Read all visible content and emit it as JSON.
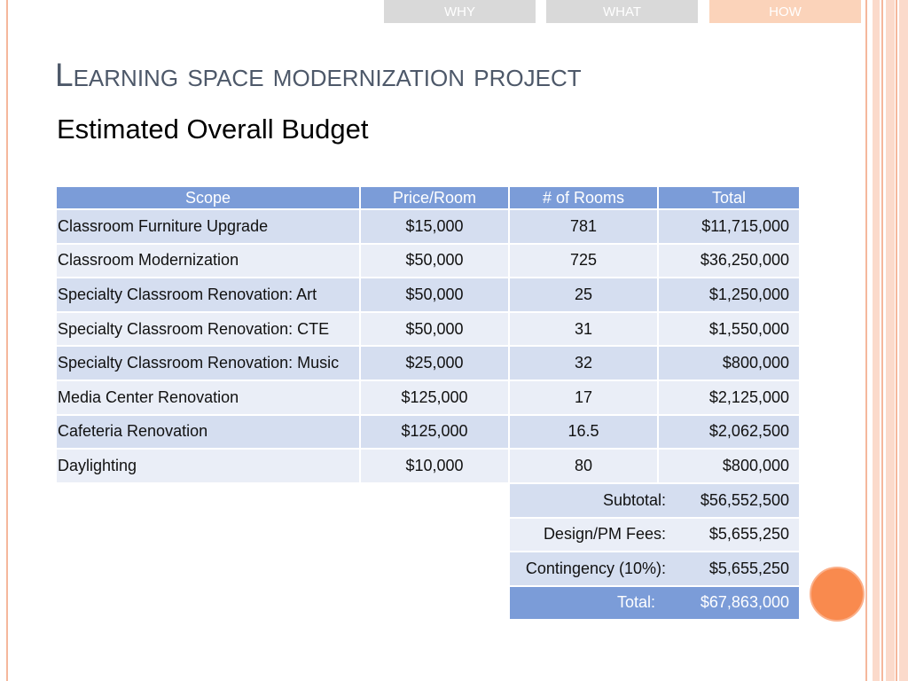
{
  "nav": {
    "tabs": [
      {
        "label": "WHY",
        "active": false
      },
      {
        "label": "WHAT",
        "active": false
      },
      {
        "label": "HOW",
        "active": true
      }
    ]
  },
  "slide": {
    "title": "Learning space modernization project",
    "subtitle": "Estimated Overall Budget"
  },
  "budget_table": {
    "headers": {
      "scope": "Scope",
      "price_per_room": "Price/Room",
      "rooms": "# of Rooms",
      "total": "Total"
    },
    "rows": [
      {
        "scope": "Classroom Furniture Upgrade",
        "price_per_room": "$15,000",
        "rooms": "781",
        "total": "$11,715,000"
      },
      {
        "scope": "Classroom Modernization",
        "price_per_room": "$50,000",
        "rooms": "725",
        "total": "$36,250,000"
      },
      {
        "scope": "Specialty Classroom Renovation: Art",
        "price_per_room": "$50,000",
        "rooms": "25",
        "total": "$1,250,000"
      },
      {
        "scope": "Specialty Classroom Renovation: CTE",
        "price_per_room": "$50,000",
        "rooms": "31",
        "total": "$1,550,000"
      },
      {
        "scope": "Specialty Classroom Renovation: Music",
        "price_per_room": "$25,000",
        "rooms": "32",
        "total": "$800,000"
      },
      {
        "scope": "Media Center Renovation",
        "price_per_room": "$125,000",
        "rooms": "17",
        "total": "$2,125,000"
      },
      {
        "scope": "Cafeteria Renovation",
        "price_per_room": "$125,000",
        "rooms": "16.5",
        "total": "$2,062,500"
      },
      {
        "scope": "Daylighting",
        "price_per_room": "$10,000",
        "rooms": "80",
        "total": "$800,000"
      }
    ],
    "summary": [
      {
        "label": "Subtotal:",
        "value": "$56,552,500"
      },
      {
        "label": "Design/PM Fees:",
        "value": "$5,655,250"
      },
      {
        "label": "Contingency (10%):",
        "value": "$5,655,250"
      }
    ],
    "grand_total": {
      "label": "Total:",
      "value": "$67,863,000"
    }
  },
  "colors": {
    "header_blue": "#7B9CD8",
    "row_dark": "#D5DEF0",
    "row_light": "#EAEEF7",
    "title_text": "#4D5869",
    "tab_gray": "#D9D9D9",
    "tab_active": "#FBD3BA",
    "accent_orange": "#F98A4E",
    "border_salmon": "#F5B79C",
    "stripe_peach": "#FBDACB"
  }
}
